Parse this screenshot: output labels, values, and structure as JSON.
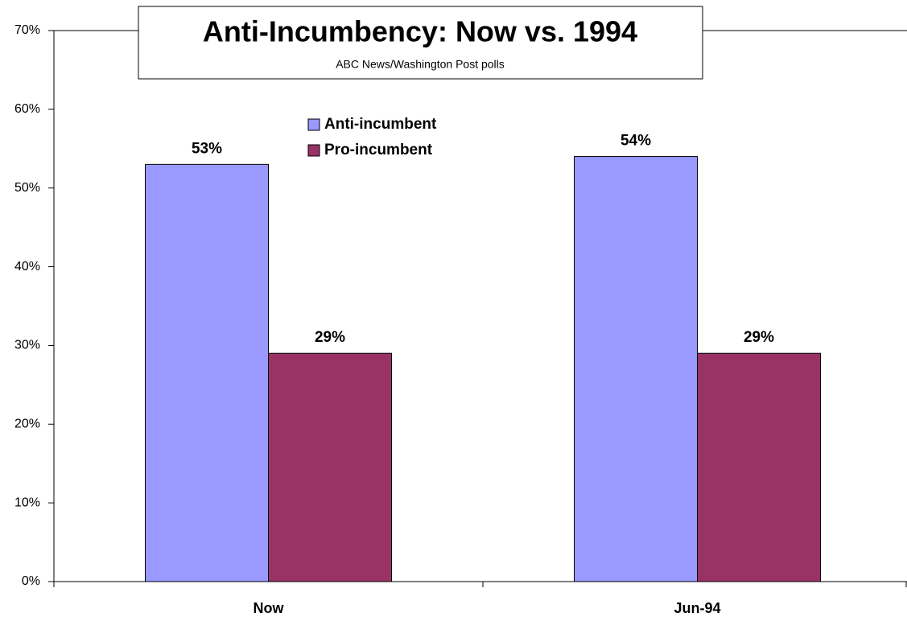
{
  "chart_data": {
    "type": "bar",
    "title": "Anti-Incumbency: Now vs. 1994",
    "subtitle": "ABC News/Washington Post polls",
    "categories": [
      "Now",
      "Jun-94"
    ],
    "series": [
      {
        "name": "Anti-incumbent",
        "color": "#9999ff",
        "values": [
          53,
          54
        ],
        "value_labels": [
          "53%",
          "54%"
        ]
      },
      {
        "name": "Pro-incumbent",
        "color": "#993366",
        "values": [
          29,
          29
        ],
        "value_labels": [
          "29%",
          "29%"
        ]
      }
    ],
    "ylim": [
      0,
      70
    ],
    "yticks": [
      {
        "value": 0,
        "label": "0%"
      },
      {
        "value": 10,
        "label": "10%"
      },
      {
        "value": 20,
        "label": "20%"
      },
      {
        "value": 30,
        "label": "30%"
      },
      {
        "value": 40,
        "label": "40%"
      },
      {
        "value": 50,
        "label": "50%"
      },
      {
        "value": 60,
        "label": "60%"
      },
      {
        "value": 70,
        "label": "70%"
      }
    ],
    "grid": false
  }
}
